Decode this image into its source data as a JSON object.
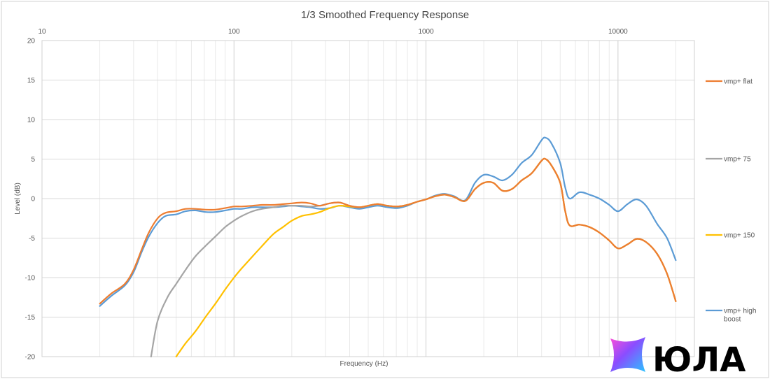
{
  "chart_data": {
    "type": "line",
    "title": "1/3 Smoothed Frequency Response",
    "xlabel": "Frequency (Hz)",
    "ylabel": "Level (dB)",
    "xscale": "log",
    "xlim": [
      10,
      25000
    ],
    "ylim": [
      -20,
      20
    ],
    "x_ticks": [
      10,
      100,
      1000,
      10000
    ],
    "x_tick_labels": [
      "10",
      "100",
      "1000",
      "10000"
    ],
    "y_ticks": [
      -20,
      -15,
      -10,
      -5,
      0,
      5,
      10,
      15,
      20
    ],
    "grid": true,
    "legend_position": "right",
    "series": [
      {
        "name": "vmp+ flat",
        "color": "#ED7D31",
        "points": [
          [
            20,
            -13.3
          ],
          [
            23,
            -12
          ],
          [
            27,
            -10.8
          ],
          [
            30,
            -9
          ],
          [
            33,
            -6.5
          ],
          [
            36,
            -4.3
          ],
          [
            40,
            -2.5
          ],
          [
            44,
            -1.8
          ],
          [
            50,
            -1.6
          ],
          [
            56,
            -1.3
          ],
          [
            63,
            -1.3
          ],
          [
            71,
            -1.4
          ],
          [
            80,
            -1.4
          ],
          [
            90,
            -1.2
          ],
          [
            100,
            -1
          ],
          [
            110,
            -1
          ],
          [
            125,
            -0.9
          ],
          [
            140,
            -0.8
          ],
          [
            160,
            -0.8
          ],
          [
            180,
            -0.7
          ],
          [
            200,
            -0.6
          ],
          [
            225,
            -0.5
          ],
          [
            250,
            -0.6
          ],
          [
            280,
            -0.9
          ],
          [
            315,
            -0.6
          ],
          [
            355,
            -0.5
          ],
          [
            400,
            -0.9
          ],
          [
            450,
            -1.1
          ],
          [
            500,
            -0.9
          ],
          [
            560,
            -0.7
          ],
          [
            630,
            -0.9
          ],
          [
            710,
            -1
          ],
          [
            800,
            -0.8
          ],
          [
            900,
            -0.4
          ],
          [
            1000,
            -0.1
          ],
          [
            1120,
            0.3
          ],
          [
            1250,
            0.5
          ],
          [
            1400,
            0.2
          ],
          [
            1600,
            -0.3
          ],
          [
            1800,
            1.2
          ],
          [
            2000,
            2
          ],
          [
            2240,
            2
          ],
          [
            2500,
            1
          ],
          [
            2800,
            1.2
          ],
          [
            3150,
            2.3
          ],
          [
            3550,
            3.2
          ],
          [
            4000,
            4.8
          ],
          [
            4200,
            5
          ],
          [
            4500,
            4.2
          ],
          [
            5000,
            2
          ],
          [
            5300,
            -1.5
          ],
          [
            5600,
            -3.4
          ],
          [
            6300,
            -3.3
          ],
          [
            7100,
            -3.6
          ],
          [
            8000,
            -4.3
          ],
          [
            9000,
            -5.3
          ],
          [
            10000,
            -6.3
          ],
          [
            11200,
            -5.8
          ],
          [
            12500,
            -5.1
          ],
          [
            14000,
            -5.5
          ],
          [
            16000,
            -7
          ],
          [
            18000,
            -9.5
          ],
          [
            20000,
            -13
          ]
        ]
      },
      {
        "name": "vmp+ 75",
        "color": "#A5A5A5",
        "points": [
          [
            37,
            -20
          ],
          [
            40,
            -15.5
          ],
          [
            45,
            -12.5
          ],
          [
            50,
            -10.8
          ],
          [
            56,
            -9
          ],
          [
            63,
            -7.3
          ],
          [
            71,
            -6
          ],
          [
            80,
            -4.8
          ],
          [
            90,
            -3.6
          ],
          [
            100,
            -2.8
          ],
          [
            110,
            -2.2
          ],
          [
            125,
            -1.6
          ],
          [
            140,
            -1.3
          ],
          [
            160,
            -1.1
          ],
          [
            180,
            -0.9
          ],
          [
            200,
            -0.9
          ],
          [
            225,
            -0.9
          ],
          [
            250,
            -1
          ],
          [
            280,
            -0.9
          ],
          [
            315,
            -0.6
          ],
          [
            355,
            -0.5
          ],
          [
            400,
            -0.9
          ],
          [
            450,
            -1.1
          ],
          [
            500,
            -0.9
          ],
          [
            560,
            -0.7
          ],
          [
            630,
            -0.9
          ],
          [
            710,
            -1
          ],
          [
            800,
            -0.8
          ],
          [
            900,
            -0.4
          ],
          [
            1000,
            -0.1
          ],
          [
            1120,
            0.3
          ],
          [
            1250,
            0.5
          ],
          [
            1400,
            0.2
          ],
          [
            1600,
            -0.3
          ],
          [
            1800,
            1.2
          ],
          [
            2000,
            2
          ],
          [
            2240,
            2
          ],
          [
            2500,
            1
          ],
          [
            2800,
            1.2
          ],
          [
            3150,
            2.3
          ],
          [
            3550,
            3.2
          ],
          [
            4000,
            4.8
          ],
          [
            4200,
            5
          ],
          [
            4500,
            4.2
          ],
          [
            5000,
            2
          ],
          [
            5300,
            -1.5
          ],
          [
            5600,
            -3.4
          ],
          [
            6300,
            -3.3
          ],
          [
            7100,
            -3.6
          ],
          [
            8000,
            -4.3
          ],
          [
            9000,
            -5.3
          ],
          [
            10000,
            -6.3
          ],
          [
            11200,
            -5.8
          ],
          [
            12500,
            -5.1
          ],
          [
            14000,
            -5.5
          ],
          [
            16000,
            -7
          ],
          [
            18000,
            -9.5
          ],
          [
            20000,
            -13
          ]
        ]
      },
      {
        "name": "vmp+ 150",
        "color": "#FFC000",
        "points": [
          [
            50,
            -20
          ],
          [
            56,
            -18.3
          ],
          [
            63,
            -16.8
          ],
          [
            71,
            -15
          ],
          [
            80,
            -13.3
          ],
          [
            90,
            -11.5
          ],
          [
            100,
            -10
          ],
          [
            110,
            -8.8
          ],
          [
            125,
            -7.3
          ],
          [
            140,
            -6
          ],
          [
            160,
            -4.5
          ],
          [
            180,
            -3.6
          ],
          [
            200,
            -2.8
          ],
          [
            225,
            -2.2
          ],
          [
            250,
            -2
          ],
          [
            280,
            -1.7
          ],
          [
            315,
            -1.2
          ],
          [
            355,
            -0.9
          ],
          [
            400,
            -1
          ],
          [
            450,
            -1.1
          ],
          [
            500,
            -0.9
          ],
          [
            560,
            -0.7
          ],
          [
            630,
            -0.9
          ],
          [
            710,
            -1
          ],
          [
            800,
            -0.8
          ],
          [
            900,
            -0.4
          ],
          [
            1000,
            -0.1
          ],
          [
            1120,
            0.3
          ],
          [
            1250,
            0.5
          ],
          [
            1400,
            0.2
          ],
          [
            1600,
            -0.3
          ],
          [
            1800,
            1.2
          ],
          [
            2000,
            2
          ],
          [
            2240,
            2
          ],
          [
            2500,
            1
          ],
          [
            2800,
            1.2
          ],
          [
            3150,
            2.3
          ],
          [
            3550,
            3.2
          ],
          [
            4000,
            4.8
          ],
          [
            4200,
            5
          ],
          [
            4500,
            4.2
          ],
          [
            5000,
            2
          ],
          [
            5300,
            -1.5
          ],
          [
            5600,
            -3.4
          ],
          [
            6300,
            -3.3
          ],
          [
            7100,
            -3.6
          ],
          [
            8000,
            -4.3
          ],
          [
            9000,
            -5.3
          ],
          [
            10000,
            -6.3
          ],
          [
            11200,
            -5.8
          ],
          [
            12500,
            -5.1
          ],
          [
            14000,
            -5.5
          ],
          [
            16000,
            -7
          ],
          [
            18000,
            -9.5
          ],
          [
            20000,
            -13
          ]
        ]
      },
      {
        "name": "vmp+ high boost",
        "color": "#5B9BD5",
        "points": [
          [
            20,
            -13.6
          ],
          [
            23,
            -12.3
          ],
          [
            27,
            -11
          ],
          [
            30,
            -9.3
          ],
          [
            33,
            -6.8
          ],
          [
            36,
            -4.8
          ],
          [
            40,
            -3.1
          ],
          [
            44,
            -2.2
          ],
          [
            50,
            -2
          ],
          [
            56,
            -1.6
          ],
          [
            63,
            -1.5
          ],
          [
            71,
            -1.7
          ],
          [
            80,
            -1.7
          ],
          [
            90,
            -1.5
          ],
          [
            100,
            -1.3
          ],
          [
            110,
            -1.3
          ],
          [
            125,
            -1.1
          ],
          [
            140,
            -1.1
          ],
          [
            160,
            -1.1
          ],
          [
            180,
            -1
          ],
          [
            200,
            -0.9
          ],
          [
            225,
            -1
          ],
          [
            250,
            -1.1
          ],
          [
            280,
            -1.3
          ],
          [
            315,
            -1.2
          ],
          [
            355,
            -0.9
          ],
          [
            400,
            -1.1
          ],
          [
            450,
            -1.3
          ],
          [
            500,
            -1.1
          ],
          [
            560,
            -0.9
          ],
          [
            630,
            -1.1
          ],
          [
            710,
            -1.2
          ],
          [
            800,
            -0.9
          ],
          [
            900,
            -0.4
          ],
          [
            1000,
            -0.1
          ],
          [
            1120,
            0.4
          ],
          [
            1250,
            0.6
          ],
          [
            1400,
            0.3
          ],
          [
            1600,
            -0.2
          ],
          [
            1800,
            2
          ],
          [
            2000,
            3
          ],
          [
            2240,
            2.8
          ],
          [
            2500,
            2.3
          ],
          [
            2800,
            3
          ],
          [
            3150,
            4.5
          ],
          [
            3550,
            5.5
          ],
          [
            4000,
            7.4
          ],
          [
            4200,
            7.7
          ],
          [
            4500,
            7
          ],
          [
            5000,
            4.5
          ],
          [
            5300,
            1.5
          ],
          [
            5600,
            0
          ],
          [
            6300,
            0.8
          ],
          [
            7100,
            0.5
          ],
          [
            8000,
            0
          ],
          [
            9000,
            -0.8
          ],
          [
            10000,
            -1.6
          ],
          [
            11200,
            -0.7
          ],
          [
            12500,
            -0.1
          ],
          [
            14000,
            -0.9
          ],
          [
            16000,
            -3.2
          ],
          [
            18000,
            -5
          ],
          [
            20000,
            -7.8
          ]
        ]
      }
    ]
  },
  "watermark": {
    "text": "ЮЛА",
    "icon": "yula-logo-icon"
  }
}
